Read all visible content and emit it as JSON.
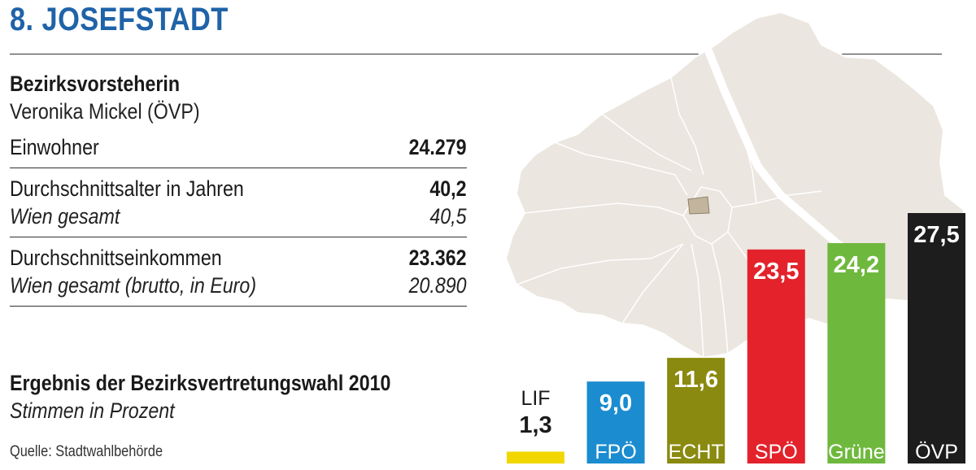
{
  "title": "8. JOSEFSTADT",
  "mayor": {
    "label": "Bezirksvorsteherin",
    "name": "Veronika Mickel (ÖVP)"
  },
  "stats": [
    {
      "label": "Einwohner",
      "value": "24.279"
    },
    {
      "label": "Durchschnittsalter in Jahren",
      "value": "40,2",
      "sublabel": "Wien gesamt",
      "subvalue": "40,5"
    },
    {
      "label": "Durchschnittseinkommen",
      "value": "23.362",
      "sublabel": "Wien gesamt (brutto, in Euro)",
      "subvalue": "20.890"
    }
  ],
  "election": {
    "title": "Ergebnis der Bezirksvertretungswahl 2010",
    "subtitle": "Stimmen in Prozent"
  },
  "source": "Quelle: Stadtwahlbehörde",
  "colors": {
    "title": "#1f63a8",
    "map_fill": "#ebe6df",
    "highlight": "#c3b49e"
  },
  "chart_data": {
    "type": "bar",
    "categories": [
      "LIF",
      "FPÖ",
      "ECHT",
      "SPÖ",
      "Grüne",
      "ÖVP"
    ],
    "values": [
      1.3,
      9.0,
      11.6,
      23.5,
      24.2,
      27.5
    ],
    "labels": [
      "1,3",
      "9,0",
      "11,6",
      "23,5",
      "24,2",
      "27,5"
    ],
    "colors": [
      "#f2d600",
      "#1b8ccf",
      "#8a8a10",
      "#e3222b",
      "#6fb83e",
      "#1e1d1d"
    ],
    "ylim": [
      0,
      27.5
    ]
  }
}
